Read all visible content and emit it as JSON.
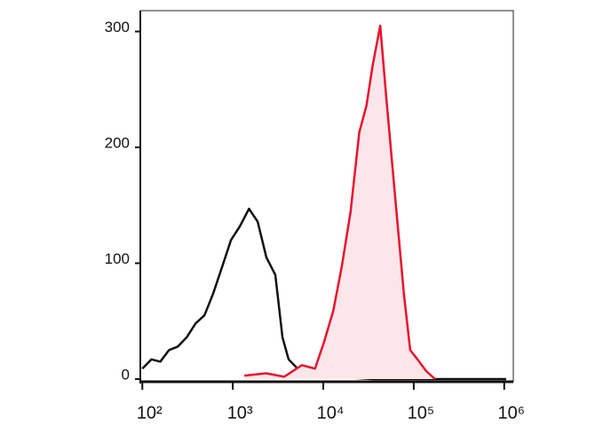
{
  "chart_data": {
    "type": "line",
    "xscale": "log",
    "xlim": [
      95,
      1260000
    ],
    "ylim": [
      0,
      318
    ],
    "xticks": [
      {
        "value": 100,
        "label": "10²"
      },
      {
        "value": 1000,
        "label": "10³"
      },
      {
        "value": 10000,
        "label": "10⁴"
      },
      {
        "value": 100000,
        "label": "10⁵"
      },
      {
        "value": 1000000,
        "label": "10⁶"
      }
    ],
    "yticks": [
      0,
      100,
      200,
      300
    ],
    "series": [
      {
        "color": "#111111",
        "x": [
          100,
          126,
          158,
          197,
          246,
          309,
          388,
          486,
          608,
          763,
          955,
          1200,
          1510,
          1880,
          2350,
          2950,
          3540,
          4140,
          5200,
          6500,
          9100,
          14400,
          35000,
          215000,
          1050000
        ],
        "values": [
          9,
          17,
          15,
          25,
          28,
          36,
          48,
          55,
          74,
          97,
          120,
          132,
          147,
          136,
          105,
          90,
          36,
          17,
          9,
          5,
          3,
          2,
          0,
          0,
          0
        ]
      },
      {
        "color": "#e8112d",
        "fill": "#fde6e9",
        "x": [
          1340,
          2350,
          3700,
          5800,
          8100,
          10200,
          12900,
          16000,
          20000,
          25000,
          30000,
          35000,
          42600,
          49700,
          62000,
          77700,
          91400,
          110000,
          137000,
          172000
        ],
        "values": [
          3,
          5,
          2,
          12,
          9,
          32,
          59,
          97,
          144,
          213,
          236,
          270,
          305,
          243,
          159,
          74,
          25,
          17,
          7,
          0
        ]
      }
    ]
  }
}
